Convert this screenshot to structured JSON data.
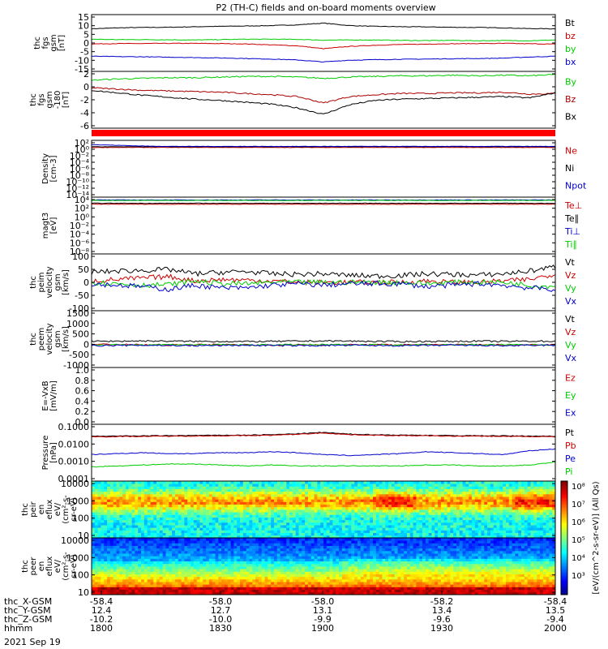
{
  "chart_data": {
    "type": "line",
    "title": "P2 (TH-C) fields and on-board moments overview",
    "panels": [
      {
        "id": "p1",
        "ylabel": [
          "thc",
          "fgs",
          "gsm",
          "[nT]"
        ],
        "ticks": [
          "15",
          "10",
          "5",
          "0",
          "-5",
          "-10",
          "-15"
        ],
        "ylim": [
          -15,
          15
        ],
        "log": false,
        "series": [
          {
            "name": "Bt",
            "color": "#000000"
          },
          {
            "name": "bz",
            "color": "#cc0000"
          },
          {
            "name": "by",
            "color": "#00cc00"
          },
          {
            "name": "bx",
            "color": "#0000cc"
          }
        ],
        "values": {
          "Bt": [
            7.5,
            8,
            8.2,
            8.3,
            8.6,
            8.8,
            9,
            9.2,
            9.6,
            10.5,
            9.2,
            8.8,
            8.6,
            8.5,
            8.3,
            8.2,
            8,
            7.6,
            7.5
          ],
          "bz": [
            -0.5,
            -0.3,
            -0.3,
            -0.2,
            -0.2,
            -0.3,
            -0.5,
            -1,
            -1.5,
            -3,
            -1.8,
            -1.2,
            -0.8,
            -0.6,
            -0.4,
            -0.3,
            -0.2,
            -0.4,
            -0.6
          ],
          "by": [
            2,
            1.8,
            1.8,
            1.7,
            1.6,
            1.8,
            2,
            2,
            1.9,
            1.5,
            1.6,
            1.6,
            1.4,
            1.3,
            1.4,
            1.2,
            1.3,
            1.2,
            1.6
          ],
          "bx": [
            -7,
            -7.2,
            -7.3,
            -7.5,
            -7.7,
            -7.9,
            -8.2,
            -8.5,
            -9,
            -10,
            -9.1,
            -8.8,
            -8.6,
            -8.5,
            -8.3,
            -8.2,
            -8,
            -7.4,
            -7
          ]
        }
      },
      {
        "id": "p2",
        "ylabel": [
          "thc",
          "fgs",
          "gsm",
          "-180",
          "[nT]"
        ],
        "ticks": [
          "2",
          "0",
          "-2",
          "-4",
          "-6"
        ],
        "ylim": [
          -7,
          2
        ],
        "log": false,
        "series": [
          {
            "name": "By",
            "color": "#00cc00"
          },
          {
            "name": "Bz",
            "color": "#aa0000"
          },
          {
            "name": "Bx",
            "color": "#000000"
          }
        ],
        "values": {
          "By": [
            0.6,
            0.8,
            0.9,
            1,
            1,
            1.1,
            1.2,
            1.2,
            1.1,
            0.9,
            1.1,
            1.2,
            1.3,
            1.3,
            1.4,
            1.3,
            1.4,
            1.3,
            1.5
          ],
          "Bz": [
            -0.6,
            -0.8,
            -1,
            -1.1,
            -1.2,
            -1.3,
            -1.5,
            -1.7,
            -2,
            -3,
            -2,
            -1.7,
            -1.5,
            -1.5,
            -1.4,
            -1.4,
            -1.3,
            -1.6,
            -1.5
          ],
          "Bx": [
            -1,
            -1.4,
            -1.8,
            -2.1,
            -2.4,
            -2.6,
            -2.9,
            -3.2,
            -3.8,
            -4.8,
            -3.3,
            -2.6,
            -2.4,
            -2.3,
            -2.2,
            -2.1,
            -2,
            -2.2,
            -1.4
          ]
        }
      },
      {
        "id": "p3",
        "ylabel": [
          "Density",
          "[cm-3]"
        ],
        "ticks": [
          "10²",
          "10⁰",
          "10⁻²",
          "10⁻⁴",
          "10⁻⁶",
          "10⁻⁸",
          "10⁻¹⁰",
          "10⁻¹²",
          "10⁻¹⁴"
        ],
        "ylim": [
          -14,
          2
        ],
        "log": true,
        "series": [
          {
            "name": "Ne",
            "color": "#cc0000"
          },
          {
            "name": "Ni",
            "color": "#000000"
          },
          {
            "name": "Npot",
            "color": "#0000cc"
          }
        ],
        "values": {
          "Ne": [
            0,
            0,
            0,
            0,
            0,
            0,
            0,
            0,
            0,
            0,
            0,
            0,
            0,
            0,
            0,
            0,
            0,
            0,
            0
          ],
          "Ni": [
            0.2,
            0.2,
            0.2,
            0.2,
            0.2,
            0.2,
            0.2,
            0.2,
            0.2,
            0.2,
            0.2,
            0.2,
            0.2,
            0.2,
            0.2,
            0.2,
            0.2,
            0.2,
            0.2
          ],
          "Npot": [
            0.8,
            0.6,
            0.4,
            0.3,
            0.3,
            0.3,
            0.3,
            0.3,
            0.3,
            0.3,
            0.3,
            0.3,
            0.3,
            0.3,
            0.3,
            0.3,
            0.3,
            0.3,
            0.3
          ]
        }
      },
      {
        "id": "p4",
        "ylabel": [
          "magt3",
          "[eV]"
        ],
        "ticks": [
          "10⁴",
          "10²",
          "10⁰",
          "10⁻²",
          "10⁻⁴",
          "10⁻⁶",
          "10⁻⁸"
        ],
        "ylim": [
          -8,
          4
        ],
        "log": true,
        "series": [
          {
            "name": "Te⊥",
            "color": "#cc0000"
          },
          {
            "name": "Te∥",
            "color": "#000000"
          },
          {
            "name": "Ti⊥",
            "color": "#0000cc"
          },
          {
            "name": "Ti∥",
            "color": "#00cc00"
          }
        ],
        "values": {
          "Te⊥": [
            2.5,
            2.5,
            2.5,
            2.5,
            2.5,
            2.5,
            2.5,
            2.5,
            2.5,
            2.5,
            2.5,
            2.5,
            2.5,
            2.5,
            2.5,
            2.5,
            2.5,
            2.5,
            2.5
          ],
          "Te∥": [
            2.7,
            2.7,
            2.7,
            2.7,
            2.7,
            2.7,
            2.7,
            2.7,
            2.7,
            2.7,
            2.7,
            2.7,
            2.7,
            2.7,
            2.7,
            2.7,
            2.7,
            2.7,
            2.7
          ],
          "Ti⊥": [
            3.4,
            3.4,
            3.4,
            3.4,
            3.4,
            3.4,
            3.4,
            3.4,
            3.4,
            3.4,
            3.4,
            3.4,
            3.4,
            3.4,
            3.4,
            3.4,
            3.4,
            3.4,
            3.4
          ],
          "Ti∥": [
            3.3,
            3.3,
            3.3,
            3.3,
            3.3,
            3.3,
            3.3,
            3.3,
            3.3,
            3.3,
            3.3,
            3.3,
            3.3,
            3.3,
            3.3,
            3.3,
            3.3,
            3.3,
            3.3
          ]
        }
      },
      {
        "id": "p5",
        "ylabel": [
          "thc",
          "peim",
          "velocity",
          "gsm",
          "[km/s]"
        ],
        "ticks": [
          "100",
          "50",
          "0",
          "-50",
          "-100"
        ],
        "ylim": [
          -100,
          100
        ],
        "log": false,
        "series": [
          {
            "name": "Vt",
            "color": "#000000"
          },
          {
            "name": "Vz",
            "color": "#cc0000"
          },
          {
            "name": "Vy",
            "color": "#00cc00"
          },
          {
            "name": "Vx",
            "color": "#0000cc"
          }
        ],
        "values": {
          "Vt": [
            35,
            40,
            42,
            45,
            30,
            35,
            38,
            30,
            28,
            30,
            25,
            22,
            24,
            30,
            28,
            25,
            30,
            40,
            55
          ],
          "Vz": [
            5,
            10,
            15,
            20,
            5,
            10,
            8,
            5,
            0,
            0,
            0,
            0,
            0,
            5,
            0,
            0,
            5,
            10,
            30
          ],
          "Vy": [
            0,
            -5,
            -10,
            -8,
            5,
            -5,
            -5,
            0,
            0,
            0,
            0,
            0,
            0,
            -5,
            0,
            0,
            0,
            -10,
            -15
          ],
          "Vx": [
            -5,
            -10,
            -15,
            -25,
            -10,
            -20,
            -20,
            -10,
            -5,
            -10,
            -5,
            -5,
            -5,
            -15,
            -10,
            -5,
            -10,
            -20,
            -25
          ]
        }
      },
      {
        "id": "p6",
        "ylabel": [
          "thc",
          "peem",
          "velocity",
          "gsm",
          "[km/s]"
        ],
        "ticks": [
          "1500",
          "1000",
          "500",
          "0",
          "-500",
          "-1000"
        ],
        "ylim": [
          -1000,
          1500
        ],
        "log": false,
        "series": [
          {
            "name": "Vt",
            "color": "#000000"
          },
          {
            "name": "Vz",
            "color": "#cc0000"
          },
          {
            "name": "Vy",
            "color": "#00cc00"
          },
          {
            "name": "Vx",
            "color": "#0000cc"
          }
        ],
        "values": {
          "Vt": [
            150,
            160,
            170,
            160,
            150,
            150,
            140,
            150,
            160,
            170,
            160,
            150,
            140,
            150,
            150,
            160,
            150,
            160,
            150
          ],
          "Vz": [
            20,
            10,
            0,
            -10,
            0,
            10,
            0,
            -20,
            0,
            0,
            0,
            0,
            0,
            0,
            10,
            0,
            0,
            0,
            0
          ],
          "Vy": [
            0,
            -10,
            0,
            10,
            0,
            0,
            -10,
            0,
            0,
            0,
            0,
            0,
            0,
            0,
            0,
            0,
            0,
            0,
            0
          ],
          "Vx": [
            -40,
            -30,
            -20,
            -30,
            -40,
            -30,
            -20,
            -30,
            -40,
            -30,
            -20,
            -30,
            -40,
            -30,
            -20,
            -30,
            -40,
            -30,
            -20
          ]
        }
      },
      {
        "id": "p7",
        "ylabel": [
          "E=-VxB",
          "[mV/m]"
        ],
        "ticks": [
          "1.0",
          "0.8",
          "0.6",
          "0.4",
          "0.2",
          "0.0"
        ],
        "ylim": [
          0,
          1
        ],
        "log": false,
        "series": [
          {
            "name": "Ez",
            "color": "#cc0000"
          },
          {
            "name": "Ey",
            "color": "#00cc00"
          },
          {
            "name": "Ex",
            "color": "#0000cc"
          }
        ],
        "values": {
          "Ez": [],
          "Ey": [],
          "Ex": []
        }
      },
      {
        "id": "p8",
        "ylabel": [
          "Pressure",
          "[nPa]"
        ],
        "ticks": [
          "0.1000",
          "0.0100",
          "0.0010",
          "0.0001"
        ],
        "ylim": [
          -4,
          -1
        ],
        "log": true,
        "series": [
          {
            "name": "Pt",
            "color": "#000000"
          },
          {
            "name": "Pb",
            "color": "#cc0000"
          },
          {
            "name": "Pe",
            "color": "#0000cc"
          },
          {
            "name": "Pi",
            "color": "#00cc00"
          }
        ],
        "values": {
          "Pt": [
            -1.63,
            -1.62,
            -1.61,
            -1.6,
            -1.59,
            -1.58,
            -1.57,
            -1.55,
            -1.5,
            -1.43,
            -1.52,
            -1.55,
            -1.57,
            -1.58,
            -1.6,
            -1.6,
            -1.61,
            -1.62,
            -1.63
          ],
          "Pb": [
            -1.66,
            -1.65,
            -1.64,
            -1.63,
            -1.62,
            -1.61,
            -1.6,
            -1.58,
            -1.53,
            -1.46,
            -1.55,
            -1.58,
            -1.6,
            -1.61,
            -1.63,
            -1.63,
            -1.64,
            -1.65,
            -1.66
          ],
          "Pe": [
            -2.6,
            -2.55,
            -2.5,
            -2.55,
            -2.55,
            -2.5,
            -2.5,
            -2.45,
            -2.5,
            -2.6,
            -2.65,
            -2.6,
            -2.55,
            -2.45,
            -2.5,
            -2.55,
            -2.6,
            -2.4,
            -2.3
          ],
          "Pi": [
            -3.25,
            -3.2,
            -3.15,
            -3.1,
            -3.1,
            -3.15,
            -3.2,
            -3.15,
            -3.2,
            -3.2,
            -3.2,
            -3.2,
            -3.2,
            -3.15,
            -3.15,
            -3.2,
            -3.2,
            -3.15,
            -3.0
          ]
        }
      },
      {
        "id": "p9",
        "ylabel": [
          "thc",
          "peir",
          "en",
          "eflux",
          "eV/",
          "(cm²-s-",
          "sr-eV)"
        ],
        "ticks": [
          "10000",
          "1000",
          "100",
          "10"
        ],
        "ylim": [
          1,
          4
        ],
        "log": true,
        "type": "heatmap"
      },
      {
        "id": "p10",
        "ylabel": [
          "thc",
          "peer",
          "en",
          "eflux",
          "eV/",
          "(cm²-s-",
          "sr-eV)"
        ],
        "ticks": [
          "10000",
          "1000",
          "100",
          "10"
        ],
        "ylim": [
          1,
          4
        ],
        "log": true,
        "type": "heatmap"
      }
    ],
    "colorbar_label": "[eV/(cm^2-s-sr-eV)] (All Qs)",
    "colorbar_ticks": [
      "10⁸",
      "10⁷",
      "10⁶",
      "10⁵",
      "10⁴",
      "10³"
    ],
    "x_rows": [
      {
        "label": "thc_X-GSM",
        "values": [
          "-58.4",
          "-58.0",
          "-58.0",
          "-58.2",
          "-58.4"
        ]
      },
      {
        "label": "thc_Y-GSM",
        "values": [
          "12.4",
          "12.7",
          "13.1",
          "13.4",
          "13.5"
        ]
      },
      {
        "label": "thc_Z-GSM",
        "values": [
          "-10.2",
          "-10.0",
          "-9.9",
          "-9.6",
          "-9.4"
        ]
      },
      {
        "label": "hhmm",
        "values": [
          "1800",
          "1830",
          "1900",
          "1930",
          "2000"
        ]
      }
    ],
    "date": "2021 Sep 19"
  }
}
